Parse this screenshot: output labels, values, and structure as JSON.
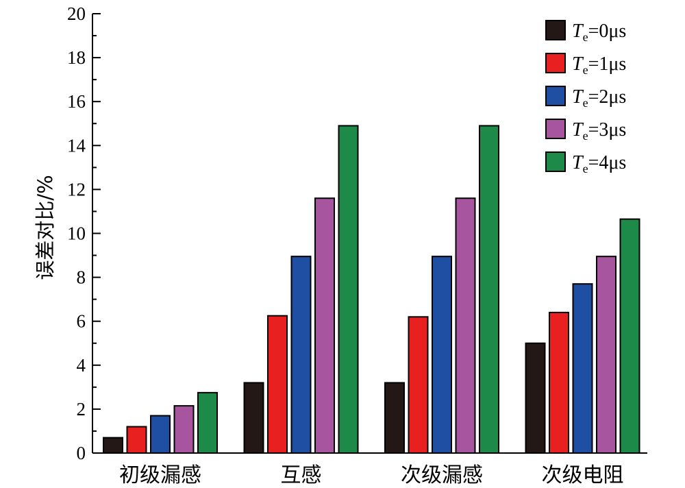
{
  "chart_data": {
    "type": "bar",
    "ylabel": "误差对比/%",
    "xlabel": "",
    "ylim": [
      0,
      20
    ],
    "yticks": [
      0,
      2,
      4,
      6,
      8,
      10,
      12,
      14,
      16,
      18,
      20
    ],
    "grid": false,
    "legend_position": "top-right",
    "categories": [
      "初级漏感",
      "互感",
      "次级漏感",
      "次级电阻"
    ],
    "series": [
      {
        "name": "Te=0μs",
        "symbol": "T",
        "subscript": "e",
        "suffix": "=0μs",
        "color": "#231815",
        "values": [
          0.7,
          3.2,
          3.2,
          5.0
        ]
      },
      {
        "name": "Te=1μs",
        "symbol": "T",
        "subscript": "e",
        "suffix": "=1μs",
        "color": "#e8201f",
        "values": [
          1.2,
          6.25,
          6.2,
          6.4
        ]
      },
      {
        "name": "Te=2μs",
        "symbol": "T",
        "subscript": "e",
        "suffix": "=2μs",
        "color": "#1f4fa3",
        "values": [
          1.7,
          8.95,
          8.95,
          7.7
        ]
      },
      {
        "name": "Te=3μs",
        "symbol": "T",
        "subscript": "e",
        "suffix": "=3μs",
        "color": "#a8559f",
        "values": [
          2.15,
          11.6,
          11.6,
          8.95
        ]
      },
      {
        "name": "Te=4μs",
        "symbol": "T",
        "subscript": "e",
        "suffix": "=4μs",
        "color": "#1e8a4a",
        "values": [
          2.75,
          14.9,
          14.9,
          10.65
        ]
      }
    ]
  }
}
